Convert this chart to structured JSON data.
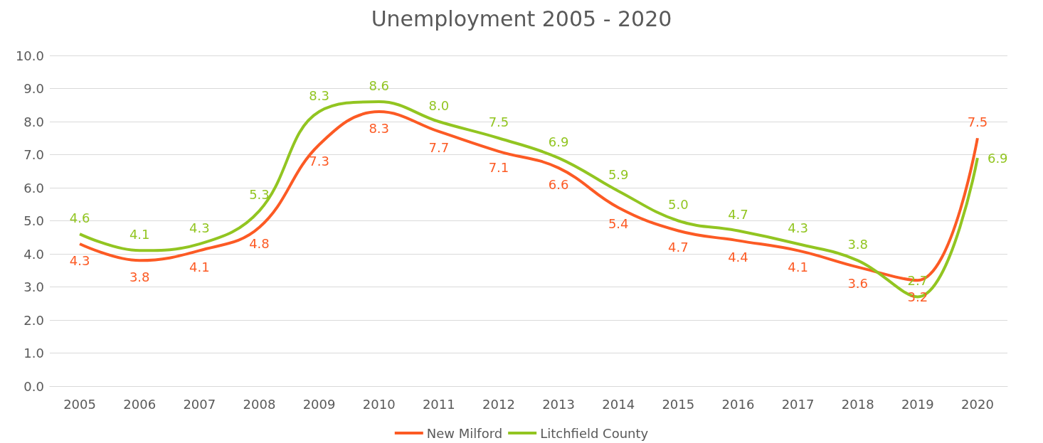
{
  "chart_data": {
    "type": "line",
    "title": "Unemployment 2005 - 2020",
    "categories": [
      "2005",
      "2006",
      "2007",
      "2008",
      "2009",
      "2010",
      "2011",
      "2012",
      "2013",
      "2014",
      "2015",
      "2016",
      "2017",
      "2018",
      "2019",
      "2020"
    ],
    "series": [
      {
        "name": "New Milford",
        "color": "#fc5a24",
        "values": [
          4.3,
          3.8,
          4.1,
          4.8,
          7.3,
          8.3,
          7.7,
          7.1,
          6.6,
          5.4,
          4.7,
          4.4,
          4.1,
          3.6,
          3.2,
          7.5
        ],
        "value_labels": [
          "4.3",
          "3.8",
          "4.1",
          "4.8",
          "7.3",
          "8.3",
          "7.7",
          "7.1",
          "6.6",
          "5.4",
          "4.7",
          "4.4",
          "4.1",
          "3.6",
          "3.2",
          "7.5"
        ]
      },
      {
        "name": "Litchfield County",
        "color": "#92c521",
        "values": [
          4.6,
          4.1,
          4.3,
          5.3,
          8.3,
          8.6,
          8.0,
          7.5,
          6.9,
          5.9,
          5.0,
          4.7,
          4.3,
          3.8,
          2.7,
          6.9
        ],
        "value_labels": [
          "4.6",
          "4.1",
          "4.3",
          "5.3",
          "8.3",
          "8.6",
          "8.0",
          "7.5",
          "6.9",
          "5.9",
          "5.0",
          "4.7",
          "4.3",
          "3.8",
          "2.7",
          "6.9"
        ]
      }
    ],
    "ylim": [
      0,
      10
    ],
    "yticks": [
      {
        "value": 0,
        "label": "0.0"
      },
      {
        "value": 1,
        "label": "1.0"
      },
      {
        "value": 2,
        "label": "2.0"
      },
      {
        "value": 3,
        "label": "3.0"
      },
      {
        "value": 4,
        "label": "4.0"
      },
      {
        "value": 5,
        "label": "5.0"
      },
      {
        "value": 6,
        "label": "6.0"
      },
      {
        "value": 7,
        "label": "7.0"
      },
      {
        "value": 8,
        "label": "8.0"
      },
      {
        "value": 9,
        "label": "9.0"
      },
      {
        "value": 10,
        "label": "10.0"
      }
    ],
    "grid": "y",
    "legend": "bottom"
  }
}
